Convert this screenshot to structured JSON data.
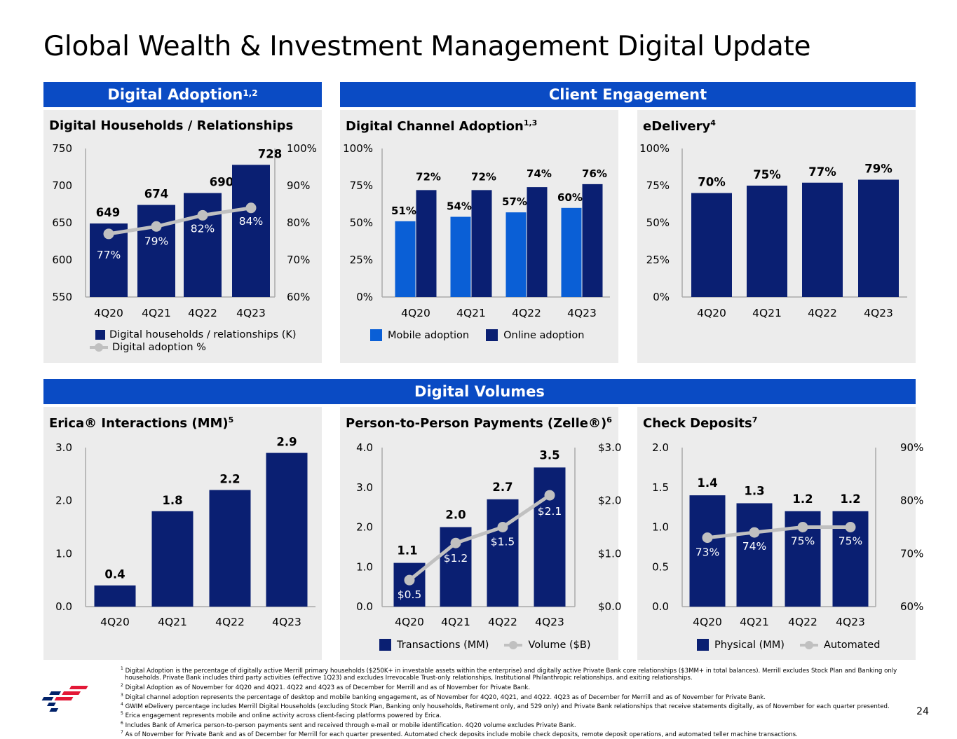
{
  "page": {
    "title": "Global Wealth & Investment Management Digital Update",
    "page_number": "24"
  },
  "bands": {
    "digital_adoption": {
      "label": "Digital Adoption",
      "sup": "1,2"
    },
    "client_engagement": {
      "label": "Client Engagement"
    },
    "digital_volumes": {
      "label": "Digital Volumes"
    }
  },
  "chart_data": [
    {
      "id": "households",
      "type": "bar",
      "title": "Digital Households / Relationships",
      "categories": [
        "4Q20",
        "4Q21",
        "4Q22",
        "4Q23"
      ],
      "series": [
        {
          "name": "Digital households / relationships (K)",
          "values": [
            649,
            674,
            690,
            728
          ],
          "labels": [
            "649",
            "674",
            "690",
            "728"
          ],
          "color": "#0a1f72",
          "axis": "left"
        },
        {
          "name": "Digital adoption %",
          "kind": "line",
          "values": [
            77,
            79,
            82,
            84
          ],
          "labels": [
            "77%",
            "79%",
            "82%",
            "84%"
          ],
          "color": "#c0c0c0",
          "axis": "right"
        }
      ],
      "ylim_left": [
        550,
        750
      ],
      "yticks_left": [
        "750",
        "700",
        "650",
        "600",
        "550"
      ],
      "ylim_right": [
        60,
        100
      ],
      "yticks_right": [
        "100%",
        "90%",
        "80%",
        "70%",
        "60%"
      ]
    },
    {
      "id": "channel",
      "type": "bar",
      "title": "Digital Channel Adoption",
      "title_sup": "1,3",
      "categories": [
        "4Q20",
        "4Q21",
        "4Q22",
        "4Q23"
      ],
      "series": [
        {
          "name": "Mobile adoption",
          "values": [
            51,
            54,
            57,
            60
          ],
          "labels": [
            "51%",
            "54%",
            "57%",
            "60%"
          ],
          "color": "#0a5fd6"
        },
        {
          "name": "Online adoption",
          "values": [
            72,
            72,
            74,
            76
          ],
          "labels": [
            "72%",
            "72%",
            "74%",
            "76%"
          ],
          "color": "#0a1f72"
        }
      ],
      "ylim_left": [
        0,
        100
      ],
      "yticks_left": [
        "100%",
        "75%",
        "50%",
        "25%",
        "0%"
      ]
    },
    {
      "id": "edelivery",
      "type": "bar",
      "title": "eDelivery",
      "title_sup": "4",
      "categories": [
        "4Q20",
        "4Q21",
        "4Q22",
        "4Q23"
      ],
      "series": [
        {
          "name": "eDelivery",
          "values": [
            70,
            75,
            77,
            79
          ],
          "labels": [
            "70%",
            "75%",
            "77%",
            "79%"
          ],
          "color": "#0a1f72"
        }
      ],
      "ylim_left": [
        0,
        100
      ],
      "yticks_left": [
        "100%",
        "75%",
        "50%",
        "25%",
        "0%"
      ]
    },
    {
      "id": "erica",
      "type": "bar",
      "title": "Erica® Interactions (MM)",
      "title_sup": "5",
      "categories": [
        "4Q20",
        "4Q21",
        "4Q22",
        "4Q23"
      ],
      "series": [
        {
          "name": "Erica interactions",
          "values": [
            0.4,
            1.8,
            2.2,
            2.9
          ],
          "labels": [
            "0.4",
            "1.8",
            "2.2",
            "2.9"
          ],
          "color": "#0a1f72"
        }
      ],
      "ylim_left": [
        0,
        3
      ],
      "yticks_left": [
        "3.0",
        "2.0",
        "1.0",
        "0.0"
      ]
    },
    {
      "id": "zelle",
      "type": "bar",
      "title": "Person-to-Person Payments (Zelle®)",
      "title_sup": "6",
      "categories": [
        "4Q20",
        "4Q21",
        "4Q22",
        "4Q23"
      ],
      "series": [
        {
          "name": "Transactions (MM)",
          "values": [
            1.1,
            2.0,
            2.7,
            3.5
          ],
          "labels": [
            "1.1",
            "2.0",
            "2.7",
            "3.5"
          ],
          "color": "#0a1f72",
          "axis": "left"
        },
        {
          "name": "Volume ($B)",
          "kind": "line",
          "values": [
            0.5,
            1.2,
            1.5,
            2.1
          ],
          "labels": [
            "$0.5",
            "$1.2",
            "$1.5",
            "$2.1"
          ],
          "color": "#c0c0c0",
          "axis": "right"
        }
      ],
      "ylim_left": [
        0,
        4
      ],
      "yticks_left": [
        "4.0",
        "3.0",
        "2.0",
        "1.0",
        "0.0"
      ],
      "ylim_right": [
        0,
        3
      ],
      "yticks_right": [
        "$3.0",
        "$2.0",
        "$1.0",
        "$0.0"
      ]
    },
    {
      "id": "checks",
      "type": "bar",
      "title": "Check Deposits",
      "title_sup": "7",
      "categories": [
        "4Q20",
        "4Q21",
        "4Q22",
        "4Q23"
      ],
      "series": [
        {
          "name": "Physical (MM)",
          "values": [
            1.4,
            1.3,
            1.2,
            1.2
          ],
          "labels": [
            "1.4",
            "1.3",
            "1.2",
            "1.2"
          ],
          "color": "#0a1f72",
          "axis": "left"
        },
        {
          "name": "Automated",
          "kind": "line",
          "values": [
            73,
            74,
            75,
            75
          ],
          "labels": [
            "73%",
            "74%",
            "75%",
            "75%"
          ],
          "color": "#c0c0c0",
          "axis": "right"
        }
      ],
      "ylim_left": [
        0,
        2
      ],
      "yticks_left": [
        "2.0",
        "1.5",
        "1.0",
        "0.5",
        "0.0"
      ],
      "ylim_right": [
        60,
        90
      ],
      "yticks_right": [
        "90%",
        "80%",
        "70%",
        "60%"
      ]
    }
  ],
  "footnotes": [
    {
      "sup": "1",
      "text": "Digital Adoption is the percentage of digitally active Merrill primary households ($250K+ in investable assets within the enterprise) and digitally active Private Bank core relationships ($3MM+ in total balances). Merrill excludes Stock Plan and Banking only households. Private Bank includes third party activities (effective 1Q23) and excludes Irrevocable Trust-only relationships, Institutional Philanthropic relationships, and exiting relationships."
    },
    {
      "sup": "2",
      "text": "Digital Adoption as of November for 4Q20 and 4Q21. 4Q22 and 4Q23 as of December for Merrill and as of November for Private Bank."
    },
    {
      "sup": "3",
      "text": "Digital channel adoption represents the percentage of desktop and mobile banking engagement, as of November for 4Q20, 4Q21, and 4Q22. 4Q23 as of December for Merrill and as of November for Private Bank."
    },
    {
      "sup": "4",
      "text": "GWIM eDelivery percentage includes Merrill Digital Households (excluding Stock Plan, Banking only households, Retirement only, and 529 only) and Private Bank relationships that receive statements digitally, as of November for each quarter presented."
    },
    {
      "sup": "5",
      "text": "Erica engagement represents mobile and online activity across client-facing platforms powered by Erica."
    },
    {
      "sup": "6",
      "text": "Includes Bank of America person-to-person payments sent and received through e-mail or mobile identification. 4Q20 volume excludes Private Bank."
    },
    {
      "sup": "7",
      "text": "As of November for Private Bank and as of December for Merrill for each quarter presented. Automated check deposits include mobile check deposits, remote deposit operations, and automated teller machine transactions."
    }
  ],
  "colors": {
    "band": "#0a4bc4",
    "dark_bar": "#0a1f72",
    "mobile_bar": "#0a5fd6",
    "line": "#c0c0c0",
    "panel_bg": "#ececec"
  },
  "icons": {
    "logo": "bank-of-america-flag-logo"
  }
}
